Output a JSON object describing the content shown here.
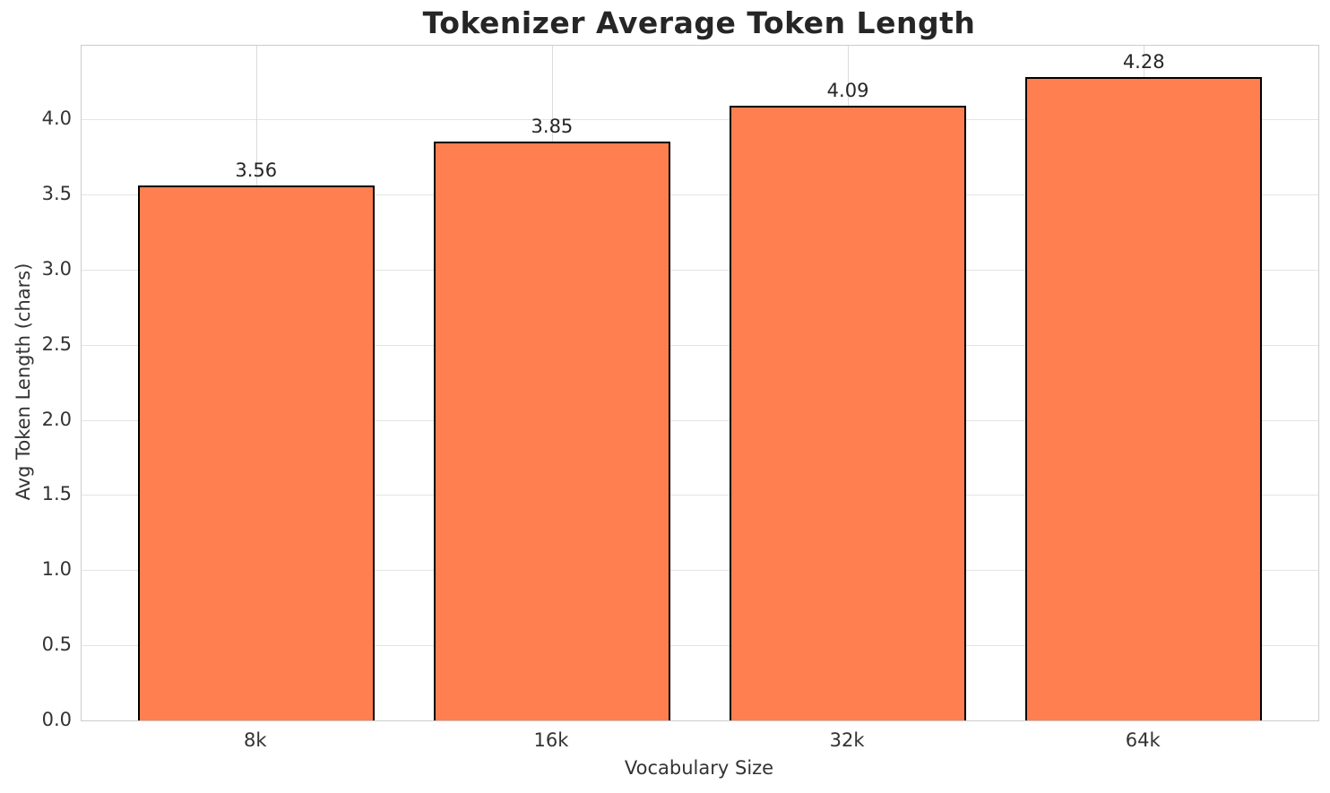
{
  "chart_data": {
    "type": "bar",
    "title": "Tokenizer Average Token Length",
    "xlabel": "Vocabulary Size",
    "ylabel": "Avg Token Length (chars)",
    "categories": [
      "8k",
      "16k",
      "32k",
      "64k"
    ],
    "values": [
      3.56,
      3.85,
      4.09,
      4.28
    ],
    "value_labels": [
      "3.56",
      "3.85",
      "4.09",
      "4.28"
    ],
    "ylim": [
      0,
      4.49
    ],
    "yticks": [
      0.0,
      0.5,
      1.0,
      1.5,
      2.0,
      2.5,
      3.0,
      3.5,
      4.0
    ],
    "ytick_labels": [
      "0.0",
      "0.5",
      "1.0",
      "1.5",
      "2.0",
      "2.5",
      "3.0",
      "3.5",
      "4.0"
    ],
    "grid": true,
    "legend_position": "none",
    "bar_width_fraction": 0.8
  },
  "colors": {
    "background": "#ffffff",
    "bar_fill": "#ff7f50",
    "bar_edge": "#000000",
    "grid_horizontal": "#e4e4e4",
    "grid_vertical": "#dcdcdc",
    "spine": "#cccccc",
    "title_text": "#262626",
    "tick_text": "#333333"
  }
}
